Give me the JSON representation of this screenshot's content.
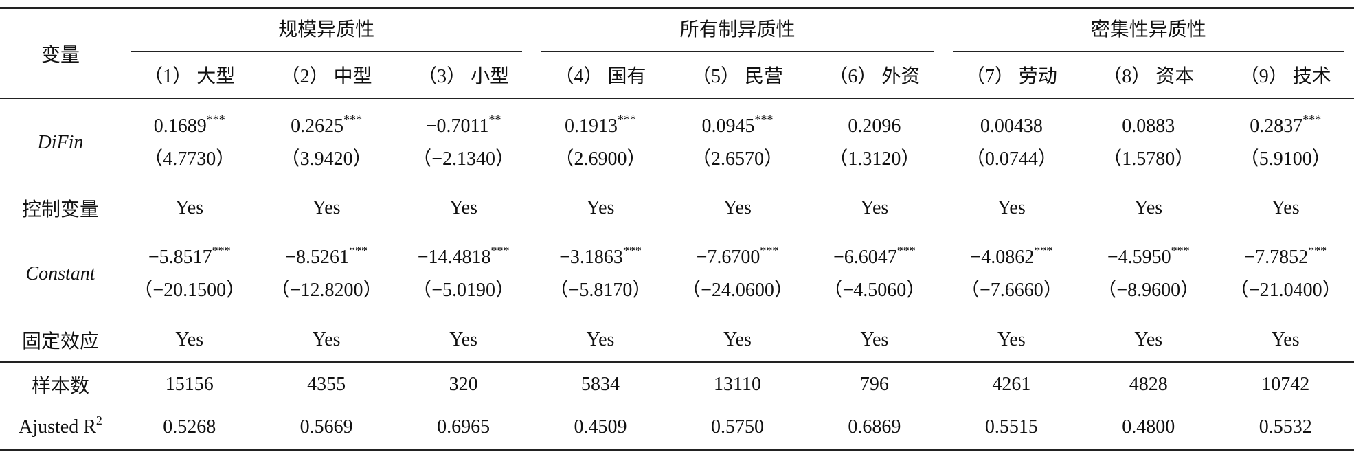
{
  "table": {
    "stub_header": "变量",
    "groups": [
      {
        "label": "规模异质性",
        "span": 3
      },
      {
        "label": "所有制异质性",
        "span": 3
      },
      {
        "label": "密集性异质性",
        "span": 3
      }
    ],
    "columns": [
      "（1） 大型",
      "（2） 中型",
      "（3） 小型",
      "（4） 国有",
      "（5） 民营",
      "（6） 外资",
      "（7） 劳动",
      "（8） 资本",
      "（9） 技术"
    ],
    "rows": [
      {
        "label": "DiFin",
        "italic": true,
        "cells": [
          {
            "value": "0.1689",
            "stars": "***",
            "t": "（4.7730）"
          },
          {
            "value": "0.2625",
            "stars": "***",
            "t": "（3.9420）"
          },
          {
            "value": "−0.7011",
            "stars": "**",
            "t": "（−2.1340）"
          },
          {
            "value": "0.1913",
            "stars": "***",
            "t": "（2.6900）"
          },
          {
            "value": "0.0945",
            "stars": "***",
            "t": "（2.6570）"
          },
          {
            "value": "0.2096",
            "t": "（1.3120）"
          },
          {
            "value": "0.00438",
            "t": "（0.0744）"
          },
          {
            "value": "0.0883",
            "t": "（1.5780）"
          },
          {
            "value": "0.2837",
            "stars": "***",
            "t": "（5.9100）"
          }
        ]
      },
      {
        "label": "控制变量",
        "cells": [
          {
            "value": "Yes"
          },
          {
            "value": "Yes"
          },
          {
            "value": "Yes"
          },
          {
            "value": "Yes"
          },
          {
            "value": "Yes"
          },
          {
            "value": "Yes"
          },
          {
            "value": "Yes"
          },
          {
            "value": "Yes"
          },
          {
            "value": "Yes"
          }
        ]
      },
      {
        "label": "Constant",
        "italic": true,
        "cells": [
          {
            "value": "−5.8517",
            "stars": "***",
            "t": "（−20.1500）"
          },
          {
            "value": "−8.5261",
            "stars": "***",
            "t": "（−12.8200）"
          },
          {
            "value": "−14.4818",
            "stars": "***",
            "t": "（−5.0190）"
          },
          {
            "value": "−3.1863",
            "stars": "***",
            "t": "（−5.8170）"
          },
          {
            "value": "−7.6700",
            "stars": "***",
            "t": "（−24.0600）"
          },
          {
            "value": "−6.6047",
            "stars": "***",
            "t": "（−4.5060）"
          },
          {
            "value": "−4.0862",
            "stars": "***",
            "t": "（−7.6660）"
          },
          {
            "value": "−4.5950",
            "stars": "***",
            "t": "（−8.9600）"
          },
          {
            "value": "−7.7852",
            "stars": "***",
            "t": "（−21.0400）"
          }
        ]
      },
      {
        "label": "固定效应",
        "cells": [
          {
            "value": "Yes"
          },
          {
            "value": "Yes"
          },
          {
            "value": "Yes"
          },
          {
            "value": "Yes"
          },
          {
            "value": "Yes"
          },
          {
            "value": "Yes"
          },
          {
            "value": "Yes"
          },
          {
            "value": "Yes"
          },
          {
            "value": "Yes"
          }
        ]
      },
      {
        "label": "样本数",
        "rule_above": true,
        "cells": [
          {
            "value": "15156"
          },
          {
            "value": "4355"
          },
          {
            "value": "320"
          },
          {
            "value": "5834"
          },
          {
            "value": "13110"
          },
          {
            "value": "796"
          },
          {
            "value": "4261"
          },
          {
            "value": "4828"
          },
          {
            "value": "10742"
          }
        ]
      },
      {
        "label": "Ajusted R",
        "label_sup": "2",
        "cells": [
          {
            "value": "0.5268"
          },
          {
            "value": "0.5669"
          },
          {
            "value": "0.6965"
          },
          {
            "value": "0.4509"
          },
          {
            "value": "0.5750"
          },
          {
            "value": "0.6869"
          },
          {
            "value": "0.5515"
          },
          {
            "value": "0.4800"
          },
          {
            "value": "0.5532"
          }
        ]
      }
    ]
  }
}
